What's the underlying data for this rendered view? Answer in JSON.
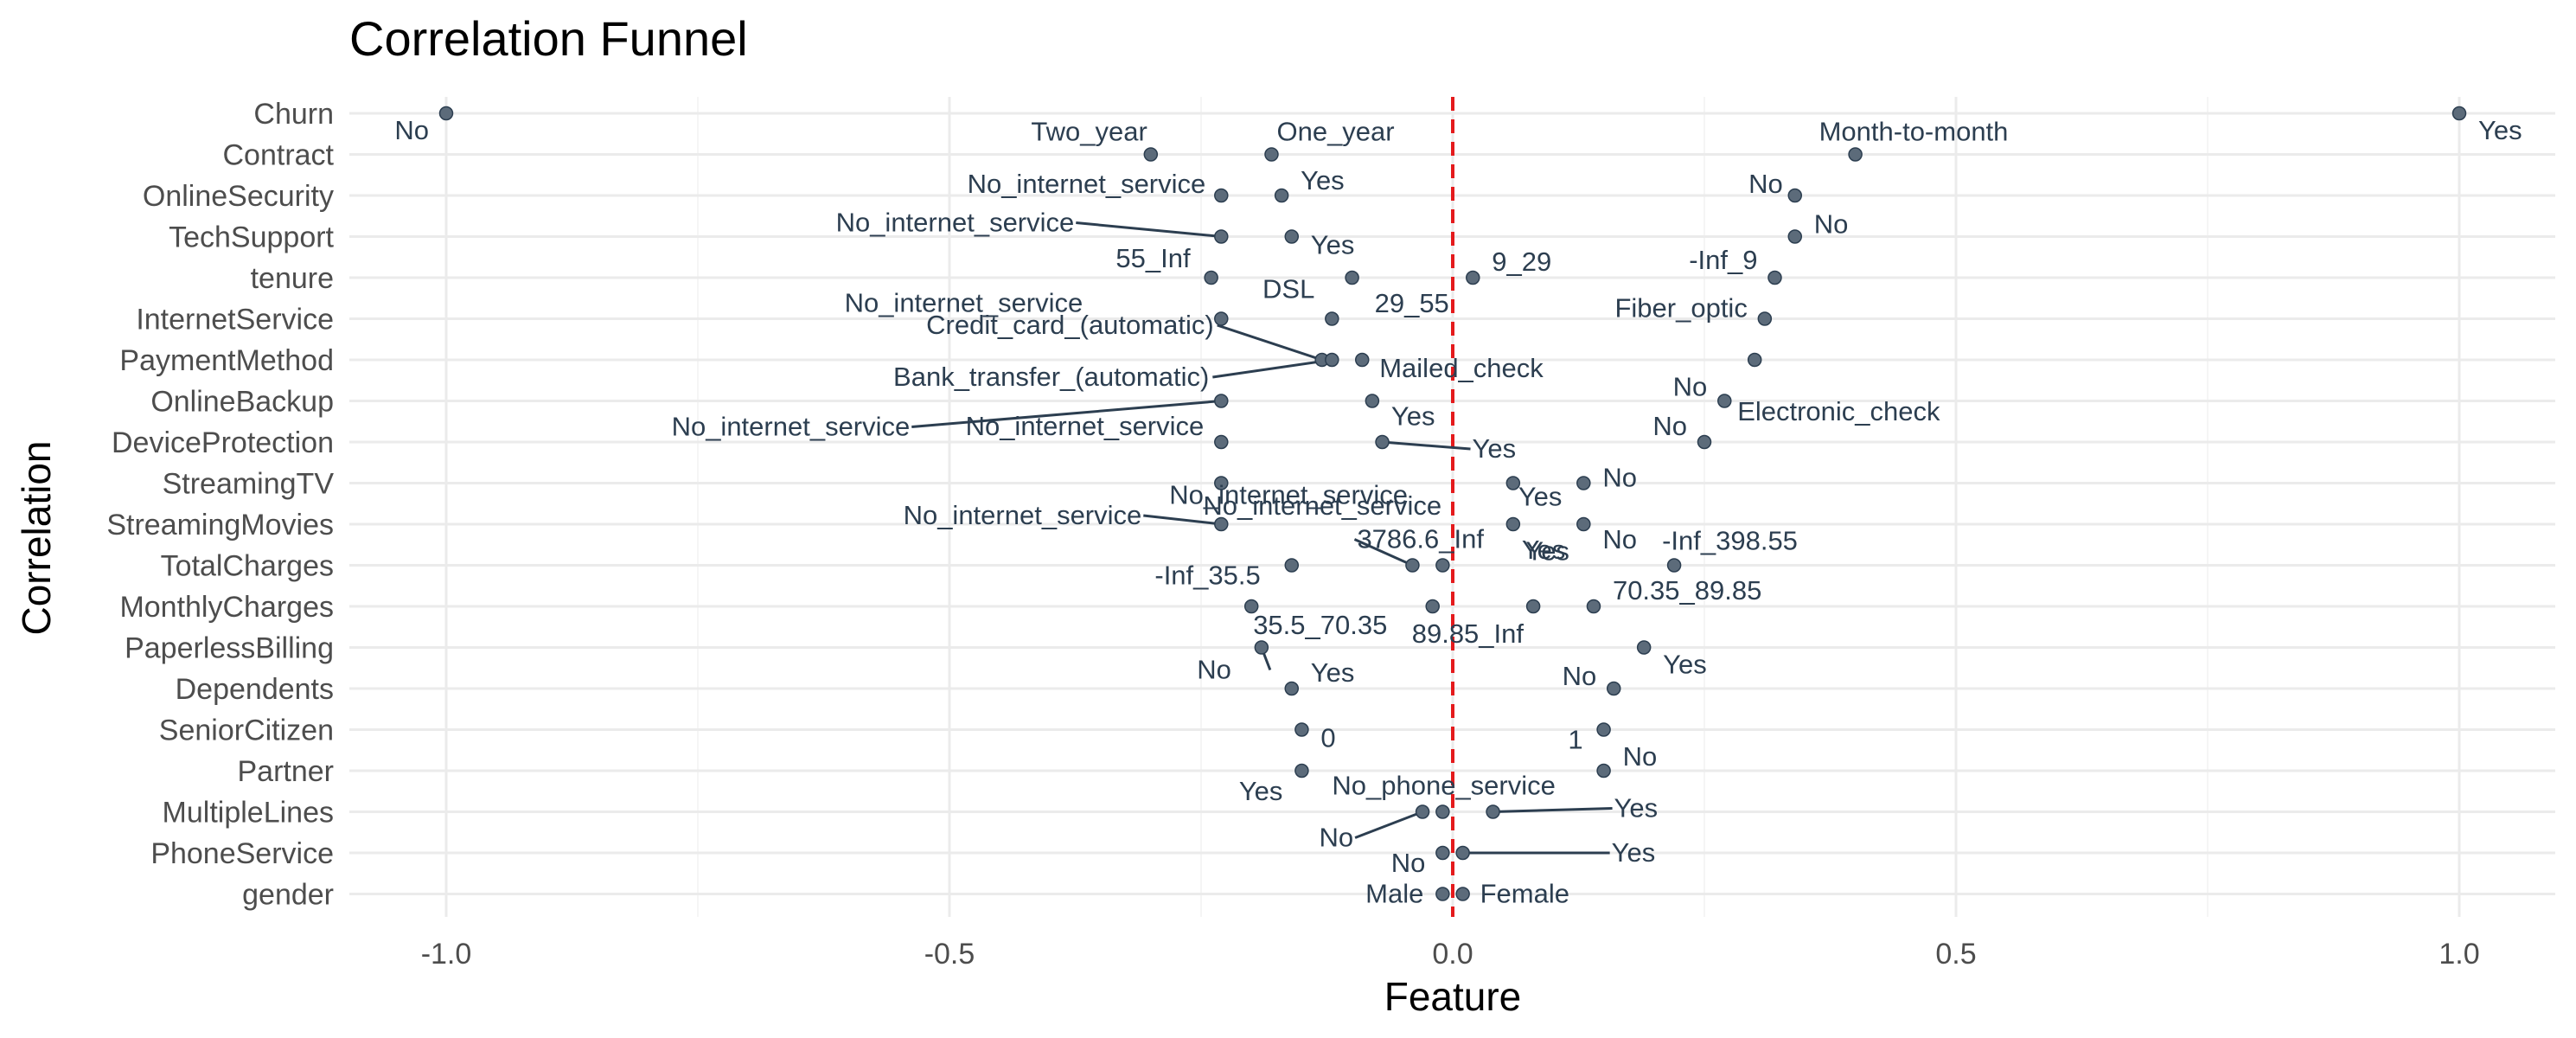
{
  "chart_data": {
    "type": "scatter",
    "title": "Correlation Funnel",
    "xlabel": "Feature",
    "ylabel": "Correlation",
    "xlim": [
      -1.1,
      1.1
    ],
    "x_ticks": [
      -1.0,
      -0.5,
      0.0,
      0.5,
      1.0
    ],
    "x_tick_labels": [
      "-1.0",
      "-0.5",
      "0.0",
      "0.5",
      "1.0"
    ],
    "grid": true,
    "reference_line": {
      "x": 0,
      "color": "#e41a1c",
      "style": "dashed"
    },
    "categories": [
      "Churn",
      "Contract",
      "OnlineSecurity",
      "TechSupport",
      "tenure",
      "InternetService",
      "PaymentMethod",
      "OnlineBackup",
      "DeviceProtection",
      "StreamingTV",
      "StreamingMovies",
      "TotalCharges",
      "MonthlyCharges",
      "PaperlessBilling",
      "Dependents",
      "SeniorCitizen",
      "Partner",
      "MultipleLines",
      "PhoneService",
      "gender"
    ],
    "points": [
      {
        "feature": "Churn",
        "level": "No",
        "correlation": -1.0
      },
      {
        "feature": "Churn",
        "level": "Yes",
        "correlation": 1.0
      },
      {
        "feature": "Contract",
        "level": "Two_year",
        "correlation": -0.3
      },
      {
        "feature": "Contract",
        "level": "One_year",
        "correlation": -0.18
      },
      {
        "feature": "Contract",
        "level": "Month-to-month",
        "correlation": 0.4
      },
      {
        "feature": "OnlineSecurity",
        "level": "No_internet_service",
        "correlation": -0.23
      },
      {
        "feature": "OnlineSecurity",
        "level": "Yes",
        "correlation": -0.17
      },
      {
        "feature": "OnlineSecurity",
        "level": "No",
        "correlation": 0.34
      },
      {
        "feature": "TechSupport",
        "level": "No_internet_service",
        "correlation": -0.23
      },
      {
        "feature": "TechSupport",
        "level": "Yes",
        "correlation": -0.16
      },
      {
        "feature": "TechSupport",
        "level": "No",
        "correlation": 0.34
      },
      {
        "feature": "tenure",
        "level": "55_Inf",
        "correlation": -0.24
      },
      {
        "feature": "tenure",
        "level": "29_55",
        "correlation": -0.1
      },
      {
        "feature": "tenure",
        "level": "9_29",
        "correlation": 0.02
      },
      {
        "feature": "tenure",
        "level": "-Inf_9",
        "correlation": 0.32
      },
      {
        "feature": "InternetService",
        "level": "No_internet_service",
        "correlation": -0.23
      },
      {
        "feature": "InternetService",
        "level": "DSL",
        "correlation": -0.12
      },
      {
        "feature": "InternetService",
        "level": "Fiber_optic",
        "correlation": 0.31
      },
      {
        "feature": "PaymentMethod",
        "level": "Credit_card_(automatic)",
        "correlation": -0.13
      },
      {
        "feature": "PaymentMethod",
        "level": "Bank_transfer_(automatic)",
        "correlation": -0.12
      },
      {
        "feature": "PaymentMethod",
        "level": "Mailed_check",
        "correlation": -0.09
      },
      {
        "feature": "PaymentMethod",
        "level": "Electronic_check",
        "correlation": 0.3
      },
      {
        "feature": "OnlineBackup",
        "level": "No_internet_service",
        "correlation": -0.23
      },
      {
        "feature": "OnlineBackup",
        "level": "Yes",
        "correlation": -0.08
      },
      {
        "feature": "OnlineBackup",
        "level": "No",
        "correlation": 0.27
      },
      {
        "feature": "DeviceProtection",
        "level": "No_internet_service",
        "correlation": -0.23
      },
      {
        "feature": "DeviceProtection",
        "level": "Yes",
        "correlation": -0.07
      },
      {
        "feature": "DeviceProtection",
        "level": "No",
        "correlation": 0.25
      },
      {
        "feature": "StreamingTV",
        "level": "No_internet_service",
        "correlation": -0.23
      },
      {
        "feature": "StreamingTV",
        "level": "Yes",
        "correlation": 0.06
      },
      {
        "feature": "StreamingTV",
        "level": "No",
        "correlation": 0.13
      },
      {
        "feature": "StreamingMovies",
        "level": "No_internet_service",
        "correlation": -0.23
      },
      {
        "feature": "StreamingMovies",
        "level": "Yes",
        "correlation": 0.06
      },
      {
        "feature": "StreamingMovies",
        "level": "No",
        "correlation": 0.13
      },
      {
        "feature": "TotalCharges",
        "level": "-Inf_35.5",
        "correlation": -0.16
      },
      {
        "feature": "TotalCharges",
        "level": "3786.6_Inf",
        "correlation": -0.04
      },
      {
        "feature": "TotalCharges",
        "level": "Yes",
        "correlation": -0.01
      },
      {
        "feature": "TotalCharges",
        "level": "-Inf_398.55",
        "correlation": 0.22
      },
      {
        "feature": "MonthlyCharges",
        "level": "35.5_70.35",
        "correlation": -0.2
      },
      {
        "feature": "MonthlyCharges",
        "level": "89.85_Inf",
        "correlation": -0.02
      },
      {
        "feature": "MonthlyCharges",
        "level": "No_internet_service",
        "correlation": 0.08
      },
      {
        "feature": "MonthlyCharges",
        "level": "70.35_89.85",
        "correlation": 0.14
      },
      {
        "feature": "PaperlessBilling",
        "level": "No",
        "correlation": -0.19
      },
      {
        "feature": "PaperlessBilling",
        "level": "Yes",
        "correlation": 0.19
      },
      {
        "feature": "Dependents",
        "level": "Yes",
        "correlation": -0.16
      },
      {
        "feature": "Dependents",
        "level": "No",
        "correlation": 0.16
      },
      {
        "feature": "SeniorCitizen",
        "level": "0",
        "correlation": -0.15
      },
      {
        "feature": "SeniorCitizen",
        "level": "1",
        "correlation": 0.15
      },
      {
        "feature": "Partner",
        "level": "Yes",
        "correlation": -0.15
      },
      {
        "feature": "Partner",
        "level": "No",
        "correlation": 0.15
      },
      {
        "feature": "MultipleLines",
        "level": "No",
        "correlation": -0.03
      },
      {
        "feature": "MultipleLines",
        "level": "No_phone_service",
        "correlation": -0.01
      },
      {
        "feature": "MultipleLines",
        "level": "Yes",
        "correlation": 0.04
      },
      {
        "feature": "PhoneService",
        "level": "No",
        "correlation": -0.01
      },
      {
        "feature": "PhoneService",
        "level": "Yes",
        "correlation": 0.01
      },
      {
        "feature": "gender",
        "level": "Male",
        "correlation": -0.01
      },
      {
        "feature": "gender",
        "level": "Female",
        "correlation": 0.01
      }
    ]
  }
}
